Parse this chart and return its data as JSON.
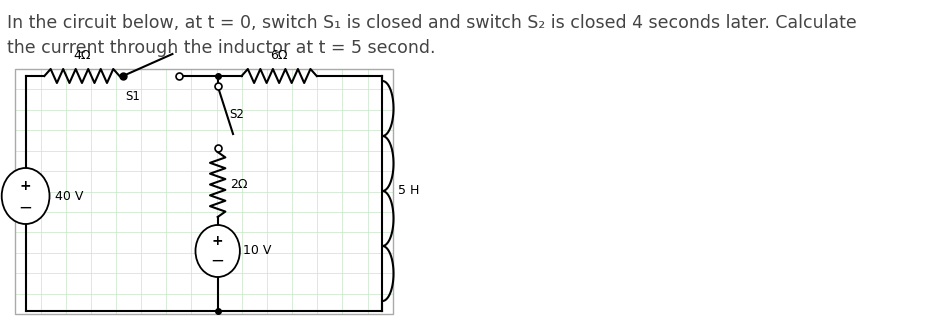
{
  "title_line1": "In the circuit below, at t = 0, switch S₁ is closed and switch S₂ is closed 4 seconds later. Calculate",
  "title_line2": "the current through the inductor at t = 5 second.",
  "background_color": "#ffffff",
  "grid_color": "#c8e6c8",
  "circuit_color": "#000000",
  "label_4ohm": "4Ω",
  "label_6ohm": "6Ω",
  "label_2ohm": "2Ω",
  "label_5H": "5 H",
  "label_40V": "40 V",
  "label_10V": "10 V",
  "label_S1": "S1",
  "label_S2": "S2",
  "text_fontsize": 12.5,
  "label_fontsize": 9.0,
  "title_color": "#444444"
}
